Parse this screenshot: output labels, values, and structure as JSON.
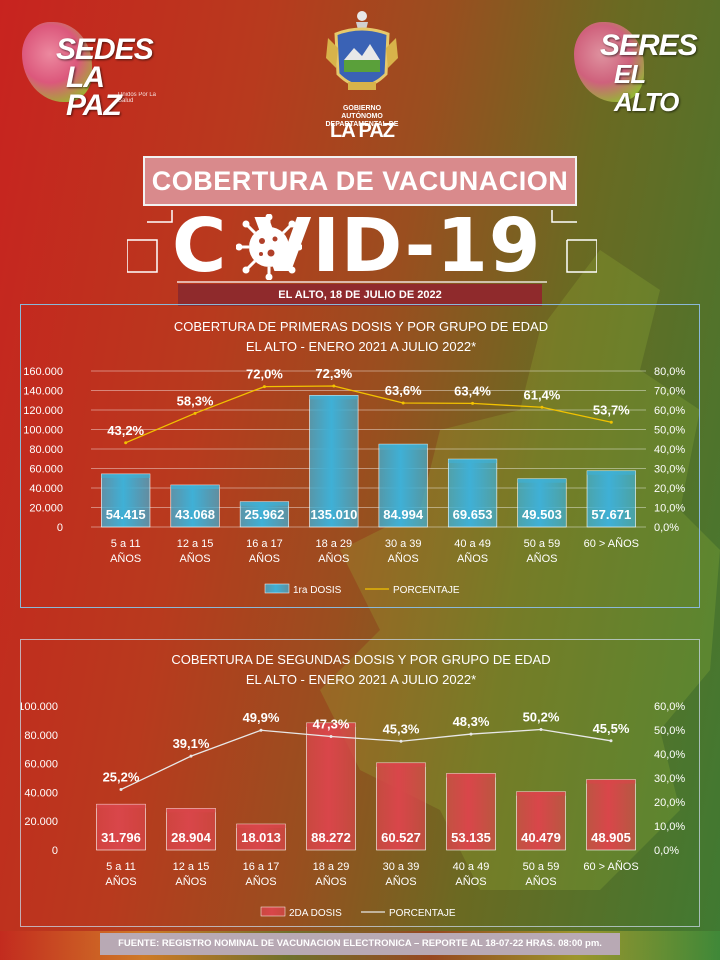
{
  "header": {
    "logo_left_line1": "SEDES",
    "logo_left_line2": "LA PAZ",
    "logo_left_tagline": "Unidos Por La Salud",
    "logo_right_line1": "SERES",
    "logo_right_line2": "EL ALTO",
    "crest_gov_line1": "GOBIERNO AUTÓNOMO",
    "crest_gov_line2": "DEPARTAMENTAL DE",
    "crest_name": "LA PAZ",
    "title": "COBERTURA DE VACUNACION",
    "covid_label": "C VID-19",
    "date": "EL ALTO, 18 DE JULIO DE 2022"
  },
  "colors": {
    "bar1": "#3fb0d6",
    "bar2": "#d9464a",
    "line1": "#f2c200",
    "line2": "#e8e8e8"
  },
  "footer": {
    "text": "FUENTE: REGISTRO NOMINAL DE VACUNACION ELECTRONICA – REPORTE AL 18-07-22 HRAS. 08:00 pm."
  },
  "chart_data": [
    {
      "type": "bar",
      "title_line1": "COBERTURA DE PRIMERAS DOSIS Y POR GRUPO DE EDAD",
      "title_line2": "EL ALTO - ENERO 2021 A JULIO 2022*",
      "categories": [
        "5 a 11\nAÑOS",
        "12 a 15\nAÑOS",
        "16 a 17\nAÑOS",
        "18 a 29\nAÑOS",
        "30 a 39\nAÑOS",
        "40 a 49\nAÑOS",
        "50 a 59\nAÑOS",
        "60 > AÑOS"
      ],
      "series": [
        {
          "name": "1ra DOSIS",
          "kind": "bar",
          "axis": "left",
          "values": [
            54415,
            43068,
            25962,
            135010,
            84994,
            69653,
            49503,
            57671
          ],
          "labels": [
            "54.415",
            "43.068",
            "25.962",
            "135.010",
            "84.994",
            "69.653",
            "49.503",
            "57.671"
          ]
        },
        {
          "name": "PORCENTAJE",
          "kind": "line",
          "axis": "right",
          "values": [
            43.2,
            58.3,
            72.0,
            72.3,
            63.6,
            63.4,
            61.4,
            53.7
          ],
          "labels": [
            "43,2%",
            "58,3%",
            "72,0%",
            "72,3%",
            "63,6%",
            "63,4%",
            "61,4%",
            "53,7%"
          ]
        }
      ],
      "ylim": [
        0,
        160000
      ],
      "yticks": [
        "0",
        "20.000",
        "40.000",
        "60.000",
        "80.000",
        "100.000",
        "120.000",
        "140.000",
        "160.000"
      ],
      "y2lim": [
        0,
        80
      ],
      "y2ticks": [
        "0,0%",
        "10,0%",
        "20,0%",
        "30,0%",
        "40,0%",
        "50,0%",
        "60,0%",
        "70,0%",
        "80,0%"
      ],
      "grid": true,
      "legend": "bottom"
    },
    {
      "type": "bar",
      "title_line1": "COBERTURA DE SEGUNDAS DOSIS Y POR GRUPO DE EDAD",
      "title_line2": "EL ALTO - ENERO 2021 A JULIO 2022*",
      "categories": [
        "5 a 11\nAÑOS",
        "12 a 15\nAÑOS",
        "16 a 17\nAÑOS",
        "18 a 29\nAÑOS",
        "30 a 39\nAÑOS",
        "40 a 49\nAÑOS",
        "50 a 59\nAÑOS",
        "60 > AÑOS"
      ],
      "series": [
        {
          "name": "2DA DOSIS",
          "kind": "bar",
          "axis": "left",
          "values": [
            31796,
            28904,
            18013,
            88272,
            60527,
            53135,
            40479,
            48905
          ],
          "labels": [
            "31.796",
            "28.904",
            "18.013",
            "88.272",
            "60.527",
            "53.135",
            "40.479",
            "48.905"
          ]
        },
        {
          "name": "PORCENTAJE",
          "kind": "line",
          "axis": "right",
          "values": [
            25.2,
            39.1,
            49.9,
            47.3,
            45.3,
            48.3,
            50.2,
            45.5
          ],
          "labels": [
            "25,2%",
            "39,1%",
            "49,9%",
            "47,3%",
            "45,3%",
            "48,3%",
            "50,2%",
            "45,5%"
          ]
        }
      ],
      "ylim": [
        0,
        100000
      ],
      "yticks": [
        "0",
        "20.000",
        "40.000",
        "60.000",
        "80.000",
        "100.000"
      ],
      "y2lim": [
        0,
        60
      ],
      "y2ticks": [
        "0,0%",
        "10,0%",
        "20,0%",
        "30,0%",
        "40,0%",
        "50,0%",
        "60,0%"
      ],
      "grid": false,
      "legend": "bottom"
    }
  ]
}
